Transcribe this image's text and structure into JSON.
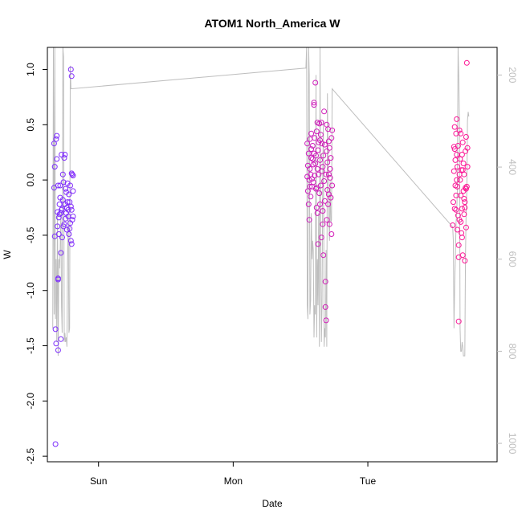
{
  "chart_data": {
    "type": "scatter",
    "title": "ATOM1 North_America W",
    "xlabel": "Date",
    "ylabel": "W",
    "y_ticks": [
      "-2.5",
      "-2.0",
      "-1.5",
      "-1.0",
      "-0.5",
      "0.0",
      "0.5",
      "1.0"
    ],
    "ylim": [
      -2.55,
      1.2
    ],
    "x_ticks": [
      "Sun",
      "Mon",
      "Tue"
    ],
    "xlim_days": [
      -0.38,
      2.96
    ],
    "secondary_axis": {
      "side": "right",
      "reversed": true,
      "ticks": [
        "200",
        "400",
        "600",
        "800",
        "1000"
      ],
      "range": [
        140,
        1040
      ],
      "color": "#bebebe"
    },
    "point_style": "open circles",
    "color_gradient": [
      "#7b2dff",
      "#ff1493"
    ],
    "line_color": "#bebebe",
    "series": [
      {
        "points": [
          [
            -0.33,
            -0.07
          ],
          [
            -0.33,
            0.33
          ],
          [
            -0.325,
            0.12
          ],
          [
            -0.325,
            -0.51
          ],
          [
            -0.32,
            -1.35
          ],
          [
            -0.32,
            -2.39
          ],
          [
            -0.315,
            -1.48
          ],
          [
            -0.315,
            0.37
          ],
          [
            -0.31,
            0.4
          ],
          [
            -0.31,
            0.19
          ],
          [
            -0.305,
            -0.42
          ],
          [
            -0.305,
            -0.29
          ],
          [
            -0.3,
            -0.89
          ],
          [
            -0.3,
            -0.9
          ],
          [
            -0.3,
            -1.54
          ],
          [
            -0.295,
            -0.34
          ],
          [
            -0.295,
            -0.49
          ],
          [
            -0.29,
            -0.22
          ],
          [
            -0.29,
            -0.31
          ],
          [
            -0.285,
            -0.16
          ],
          [
            -0.285,
            -0.05
          ],
          [
            -0.28,
            -0.3
          ],
          [
            -0.28,
            -0.66
          ],
          [
            -0.28,
            -1.44
          ],
          [
            -0.275,
            0.23
          ],
          [
            -0.275,
            -0.27
          ],
          [
            -0.27,
            -0.52
          ],
          [
            -0.27,
            -0.26
          ],
          [
            -0.265,
            -0.18
          ],
          [
            -0.265,
            0.05
          ],
          [
            -0.26,
            -0.02
          ],
          [
            -0.26,
            -0.42
          ],
          [
            -0.255,
            0.2
          ],
          [
            -0.255,
            -0.4
          ],
          [
            -0.25,
            0.23
          ],
          [
            -0.25,
            -0.22
          ],
          [
            -0.245,
            -0.08
          ],
          [
            -0.245,
            -0.35
          ],
          [
            -0.24,
            -0.11
          ],
          [
            -0.24,
            -0.3
          ],
          [
            -0.235,
            -0.25
          ],
          [
            -0.235,
            -0.45
          ],
          [
            -0.23,
            -0.2
          ],
          [
            -0.23,
            -0.03
          ],
          [
            -0.225,
            -0.33
          ],
          [
            -0.225,
            -0.27
          ],
          [
            -0.22,
            -0.49
          ],
          [
            -0.22,
            -0.13
          ],
          [
            -0.215,
            -0.44
          ],
          [
            -0.215,
            -0.2
          ],
          [
            -0.21,
            -0.05
          ],
          [
            -0.21,
            -0.39
          ],
          [
            -0.205,
            -0.24
          ],
          [
            -0.205,
            -0.55
          ],
          [
            -0.2,
            0.06
          ],
          [
            -0.2,
            -0.27
          ],
          [
            -0.2,
            -0.58
          ],
          [
            -0.195,
            0.05
          ],
          [
            -0.195,
            -0.36
          ],
          [
            -0.19,
            -0.33
          ],
          [
            -0.19,
            -0.1
          ],
          [
            -0.19,
            0.04
          ],
          [
            -0.205,
            1.0
          ],
          [
            -0.2,
            0.94
          ],
          [
            -0.3,
            -0.05
          ]
        ]
      },
      {
        "points": [
          [
            1.55,
            0.33
          ],
          [
            1.55,
            0.03
          ],
          [
            1.555,
            -0.1
          ],
          [
            1.555,
            0.13
          ],
          [
            1.56,
            -0.22
          ],
          [
            1.56,
            0.24
          ],
          [
            1.565,
            0.0
          ],
          [
            1.565,
            -0.36
          ],
          [
            1.57,
            0.1
          ],
          [
            1.57,
            0.37
          ],
          [
            1.575,
            0.05
          ],
          [
            1.575,
            -0.15
          ],
          [
            1.58,
            0.42
          ],
          [
            1.58,
            0.28
          ],
          [
            1.585,
            0.01
          ],
          [
            1.585,
            -0.06
          ],
          [
            1.59,
            0.19
          ],
          [
            1.59,
            0.31
          ],
          [
            1.595,
            -0.02
          ],
          [
            1.595,
            0.14
          ],
          [
            1.6,
            0.24
          ],
          [
            1.6,
            0.68
          ],
          [
            1.605,
            0.04
          ],
          [
            1.605,
            0.38
          ],
          [
            1.61,
            0.88
          ],
          [
            1.61,
            0.15
          ],
          [
            1.615,
            -0.08
          ],
          [
            1.615,
            0.22
          ],
          [
            1.62,
            0.44
          ],
          [
            1.62,
            -0.25
          ],
          [
            1.625,
            -0.3
          ],
          [
            1.625,
            0.1
          ],
          [
            1.63,
            0.27
          ],
          [
            1.63,
            -0.58
          ],
          [
            1.635,
            0.34
          ],
          [
            1.635,
            0.05
          ],
          [
            1.64,
            -0.12
          ],
          [
            1.64,
            0.51
          ],
          [
            1.645,
            0.18
          ],
          [
            1.645,
            -0.22
          ],
          [
            1.65,
            0.41
          ],
          [
            1.65,
            -0.05
          ],
          [
            1.655,
            0.52
          ],
          [
            1.655,
            -0.52
          ],
          [
            1.66,
            0.08
          ],
          [
            1.66,
            0.33
          ],
          [
            1.665,
            -0.28
          ],
          [
            1.665,
            0.12
          ],
          [
            1.67,
            -0.68
          ],
          [
            1.67,
            0.22
          ],
          [
            1.675,
            0.62
          ],
          [
            1.675,
            -0.01
          ],
          [
            1.68,
            -0.19
          ],
          [
            1.68,
            0.32
          ],
          [
            1.685,
            -0.92
          ],
          [
            1.685,
            -1.15
          ],
          [
            1.69,
            -1.27
          ],
          [
            1.69,
            0.05
          ],
          [
            1.695,
            0.26
          ],
          [
            1.695,
            -0.36
          ],
          [
            1.7,
            0.16
          ],
          [
            1.7,
            -0.09
          ],
          [
            1.705,
            0.46
          ],
          [
            1.705,
            -0.22
          ],
          [
            1.71,
            0.05
          ],
          [
            1.71,
            -0.13
          ],
          [
            1.715,
            0.29
          ],
          [
            1.715,
            -0.4
          ],
          [
            1.72,
            0.1
          ],
          [
            1.72,
            0.02
          ],
          [
            1.725,
            -0.16
          ],
          [
            1.725,
            0.2
          ],
          [
            1.73,
            0.38
          ],
          [
            1.73,
            -0.49
          ],
          [
            1.735,
            0.45
          ],
          [
            1.735,
            -0.05
          ],
          [
            1.6,
            0.7
          ],
          [
            1.625,
            0.52
          ],
          [
            1.645,
            0.36
          ],
          [
            1.665,
            -0.4
          ],
          [
            1.695,
            0.5
          ],
          [
            1.71,
            0.35
          ],
          [
            1.57,
            -0.06
          ],
          [
            1.58,
            0.2
          ],
          [
            1.62,
            -0.07
          ]
        ]
      },
      {
        "points": [
          [
            2.63,
            -0.41
          ],
          [
            2.635,
            -0.2
          ],
          [
            2.64,
            0.08
          ],
          [
            2.64,
            0.3
          ],
          [
            2.645,
            -0.26
          ],
          [
            2.645,
            0.48
          ],
          [
            2.65,
            0.18
          ],
          [
            2.65,
            -0.05
          ],
          [
            2.655,
            0.42
          ],
          [
            2.655,
            -0.14
          ],
          [
            2.66,
            0.55
          ],
          [
            2.66,
            0.23
          ],
          [
            2.665,
            -0.06
          ],
          [
            2.665,
            0.12
          ],
          [
            2.67,
            0.31
          ],
          [
            2.67,
            -0.32
          ],
          [
            2.675,
            -0.7
          ],
          [
            2.675,
            -1.28
          ],
          [
            2.68,
            0.45
          ],
          [
            2.68,
            -0.36
          ],
          [
            2.685,
            0.0
          ],
          [
            2.685,
            0.19
          ],
          [
            2.69,
            -0.14
          ],
          [
            2.69,
            0.42
          ],
          [
            2.695,
            -0.48
          ],
          [
            2.695,
            0.09
          ],
          [
            2.7,
            0.23
          ],
          [
            2.7,
            -0.26
          ],
          [
            2.705,
            -0.68
          ],
          [
            2.705,
            0.34
          ],
          [
            2.71,
            -0.1
          ],
          [
            2.71,
            0.15
          ],
          [
            2.715,
            -0.31
          ],
          [
            2.715,
            0.05
          ],
          [
            2.72,
            -0.73
          ],
          [
            2.72,
            -0.2
          ],
          [
            2.725,
            0.26
          ],
          [
            2.725,
            -0.07
          ],
          [
            2.73,
            0.39
          ],
          [
            2.73,
            -0.43
          ],
          [
            2.735,
            1.06
          ],
          [
            2.735,
            -0.06
          ],
          [
            2.74,
            0.29
          ],
          [
            2.74,
            0.12
          ],
          [
            2.69,
            -0.38
          ],
          [
            2.7,
            -0.52
          ],
          [
            2.675,
            -0.59
          ],
          [
            2.72,
            -0.25
          ],
          [
            2.705,
            0.09
          ],
          [
            2.66,
            0.0
          ],
          [
            2.715,
            -0.17
          ],
          [
            2.73,
            -0.08
          ],
          [
            2.645,
            0.28
          ],
          [
            2.655,
            -0.27
          ],
          [
            2.665,
            -0.45
          ],
          [
            2.68,
            0.05
          ]
        ]
      }
    ],
    "line_path": [
      [
        -0.34,
        750
      ],
      [
        -0.335,
        140
      ],
      [
        -0.33,
        720
      ],
      [
        -0.325,
        140
      ],
      [
        -0.32,
        730
      ],
      [
        -0.315,
        600
      ],
      [
        -0.31,
        780
      ],
      [
        -0.305,
        500
      ],
      [
        -0.3,
        810
      ],
      [
        -0.295,
        600
      ],
      [
        -0.29,
        620
      ],
      [
        -0.285,
        580
      ],
      [
        -0.28,
        500
      ],
      [
        -0.275,
        700
      ],
      [
        -0.27,
        760
      ],
      [
        -0.265,
        140
      ],
      [
        -0.26,
        160
      ],
      [
        -0.255,
        780
      ],
      [
        -0.25,
        760
      ],
      [
        -0.245,
        780
      ],
      [
        -0.24,
        770
      ],
      [
        -0.235,
        790
      ],
      [
        -0.23,
        600
      ],
      [
        -0.225,
        500
      ],
      [
        -0.22,
        760
      ],
      [
        -0.215,
        750
      ],
      [
        -0.21,
        180
      ],
      [
        -0.205,
        230
      ],
      [
        1.54,
        185
      ],
      [
        1.545,
        140
      ],
      [
        1.55,
        700
      ],
      [
        1.555,
        730
      ],
      [
        1.56,
        140
      ],
      [
        1.565,
        200
      ],
      [
        1.57,
        720
      ],
      [
        1.575,
        690
      ],
      [
        1.58,
        500
      ],
      [
        1.585,
        600
      ],
      [
        1.59,
        560
      ],
      [
        1.595,
        580
      ],
      [
        1.6,
        770
      ],
      [
        1.605,
        700
      ],
      [
        1.61,
        720
      ],
      [
        1.615,
        200
      ],
      [
        1.62,
        770
      ],
      [
        1.625,
        600
      ],
      [
        1.63,
        700
      ],
      [
        1.635,
        500
      ],
      [
        1.64,
        790
      ],
      [
        1.645,
        140
      ],
      [
        1.65,
        600
      ],
      [
        1.655,
        780
      ],
      [
        1.66,
        700
      ],
      [
        1.665,
        420
      ],
      [
        1.67,
        300
      ],
      [
        1.675,
        790
      ],
      [
        1.68,
        750
      ],
      [
        1.685,
        770
      ],
      [
        1.69,
        580
      ],
      [
        1.695,
        790
      ],
      [
        1.7,
        240
      ],
      [
        1.705,
        420
      ],
      [
        1.71,
        500
      ],
      [
        1.715,
        560
      ],
      [
        1.72,
        430
      ],
      [
        1.725,
        520
      ],
      [
        1.73,
        515
      ],
      [
        1.735,
        230
      ],
      [
        2.63,
        530
      ],
      [
        2.635,
        560
      ],
      [
        2.64,
        750
      ],
      [
        2.645,
        650
      ],
      [
        2.65,
        600
      ],
      [
        2.655,
        520
      ],
      [
        2.66,
        500
      ],
      [
        2.665,
        450
      ],
      [
        2.67,
        140
      ],
      [
        2.675,
        200
      ],
      [
        2.68,
        300
      ],
      [
        2.685,
        750
      ],
      [
        2.69,
        800
      ],
      [
        2.695,
        800
      ],
      [
        2.7,
        780
      ],
      [
        2.705,
        790
      ],
      [
        2.71,
        810
      ],
      [
        2.715,
        810
      ],
      [
        2.72,
        810
      ],
      [
        2.725,
        600
      ],
      [
        2.73,
        500
      ],
      [
        2.735,
        450
      ],
      [
        2.74,
        300
      ],
      [
        2.745,
        280
      ],
      [
        2.75,
        290
      ]
    ]
  }
}
